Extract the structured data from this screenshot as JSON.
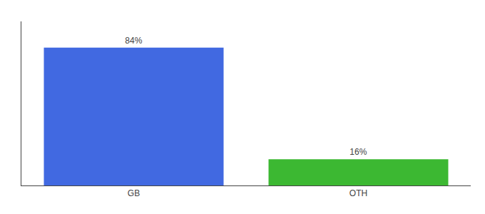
{
  "chart_data": {
    "type": "bar",
    "categories": [
      "GB",
      "OTH"
    ],
    "values": [
      84,
      16
    ],
    "colors": [
      "#4169e1",
      "#3cb832"
    ],
    "value_labels": [
      "84%",
      "16%"
    ],
    "data_labels": true,
    "ylim": [
      0,
      100
    ],
    "tick_labels": "x",
    "grid": false
  }
}
